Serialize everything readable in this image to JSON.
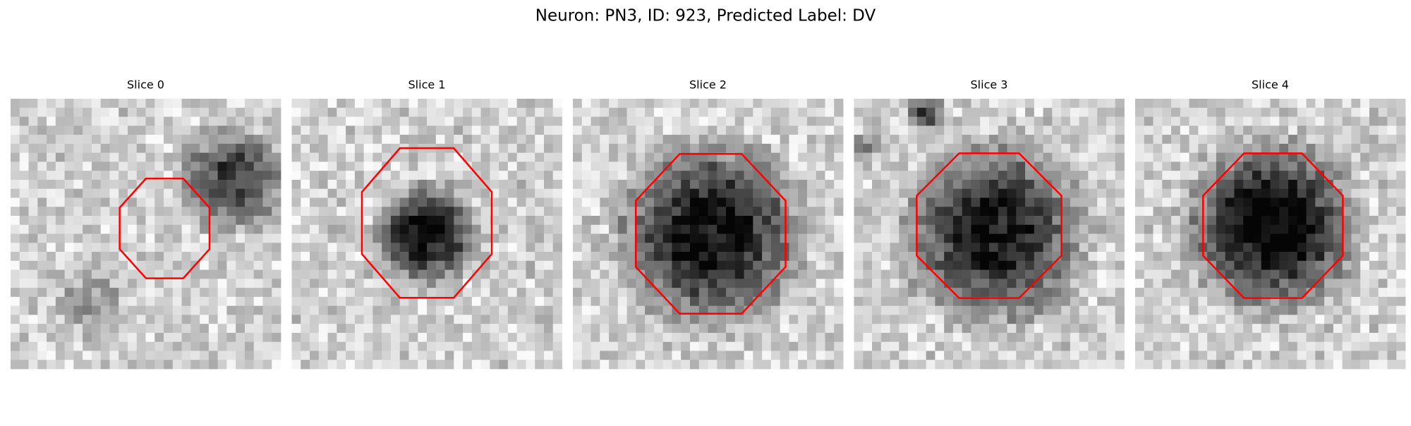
{
  "figure": {
    "title": "Neuron: PN3, ID: 923, Predicted Label: DV",
    "panels": [
      {
        "title": "Slice 0"
      },
      {
        "title": "Slice 1"
      },
      {
        "title": "Slice 2"
      },
      {
        "title": "Slice 3"
      },
      {
        "title": "Slice 4"
      }
    ]
  }
}
